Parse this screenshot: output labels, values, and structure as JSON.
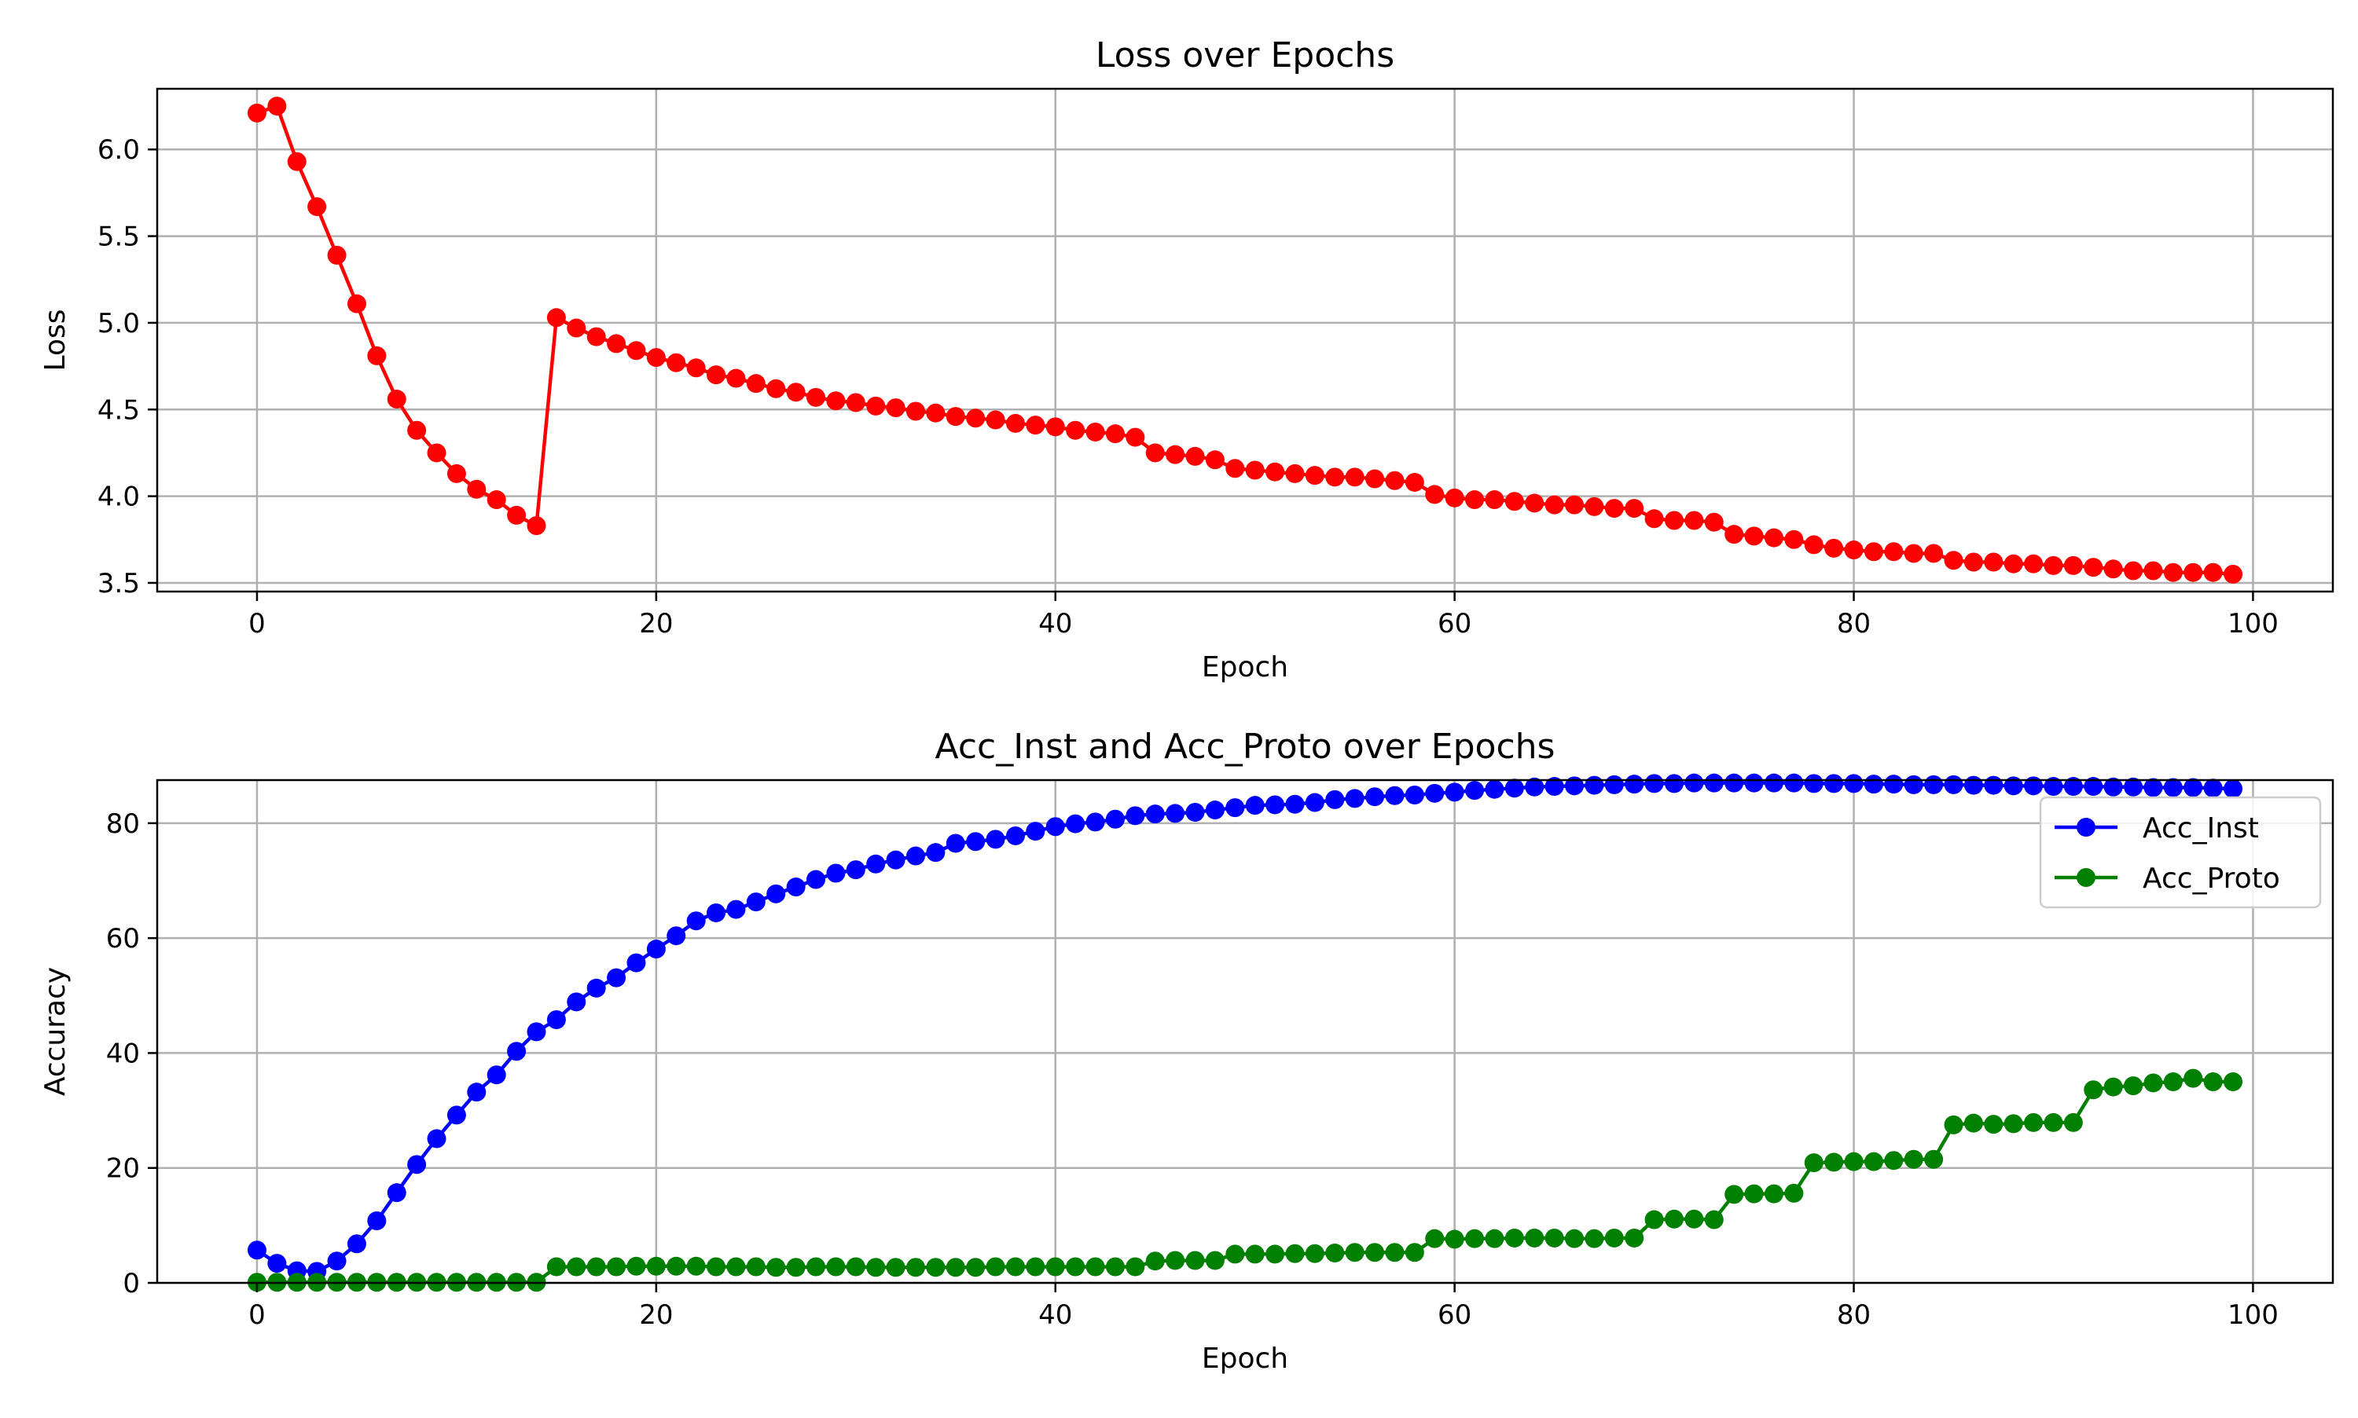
{
  "chart_data": [
    {
      "type": "line",
      "title": "Loss over Epochs",
      "xlabel": "Epoch",
      "ylabel": "Loss",
      "xlim": [
        -5,
        104
      ],
      "ylim": [
        3.45,
        6.35
      ],
      "xticks": [
        0,
        20,
        40,
        60,
        80,
        100
      ],
      "yticks": [
        3.5,
        4.0,
        4.5,
        5.0,
        5.5,
        6.0
      ],
      "ytick_labels": [
        "3.5",
        "4.0",
        "4.5",
        "5.0",
        "5.5",
        "6.0"
      ],
      "grid": true,
      "legend": null,
      "series": [
        {
          "name": "",
          "color": "#ff0000",
          "marker": "circle",
          "values": [
            6.21,
            6.25,
            5.93,
            5.67,
            5.39,
            5.11,
            4.81,
            4.56,
            4.38,
            4.25,
            4.13,
            4.04,
            3.98,
            3.89,
            3.83,
            5.03,
            4.97,
            4.92,
            4.88,
            4.84,
            4.8,
            4.77,
            4.74,
            4.7,
            4.68,
            4.65,
            4.62,
            4.6,
            4.57,
            4.55,
            4.54,
            4.52,
            4.51,
            4.49,
            4.48,
            4.46,
            4.45,
            4.44,
            4.42,
            4.41,
            4.4,
            4.38,
            4.37,
            4.36,
            4.34,
            4.25,
            4.24,
            4.23,
            4.21,
            4.16,
            4.15,
            4.14,
            4.13,
            4.12,
            4.11,
            4.11,
            4.1,
            4.09,
            4.08,
            4.01,
            3.99,
            3.98,
            3.98,
            3.97,
            3.96,
            3.95,
            3.95,
            3.94,
            3.93,
            3.93,
            3.87,
            3.86,
            3.86,
            3.85,
            3.78,
            3.77,
            3.76,
            3.75,
            3.72,
            3.7,
            3.69,
            3.68,
            3.68,
            3.67,
            3.67,
            3.63,
            3.62,
            3.62,
            3.61,
            3.61,
            3.6,
            3.6,
            3.59,
            3.58,
            3.57,
            3.57,
            3.56,
            3.56,
            3.56,
            3.55
          ]
        }
      ]
    },
    {
      "type": "line",
      "title": "Acc_Inst and Acc_Proto over Epochs",
      "xlabel": "Epoch",
      "ylabel": "Accuracy",
      "xlim": [
        -5,
        104
      ],
      "ylim": [
        0,
        87.5
      ],
      "xticks": [
        0,
        20,
        40,
        60,
        80,
        100
      ],
      "yticks": [
        0,
        20,
        40,
        60,
        80
      ],
      "ytick_labels": [
        "0",
        "20",
        "40",
        "60",
        "80"
      ],
      "grid": true,
      "legend": "upper-right",
      "series": [
        {
          "name": "Acc_Inst",
          "color": "#0000ff",
          "marker": "circle",
          "values": [
            5.7,
            3.4,
            2.1,
            2.0,
            3.8,
            6.8,
            10.8,
            15.7,
            20.6,
            25.1,
            29.2,
            33.2,
            36.2,
            40.3,
            43.7,
            45.8,
            48.9,
            51.3,
            53.1,
            55.7,
            58.1,
            60.4,
            63.0,
            64.4,
            65.0,
            66.3,
            67.7,
            68.9,
            70.2,
            71.3,
            71.9,
            72.9,
            73.6,
            74.3,
            74.9,
            76.5,
            76.8,
            77.2,
            77.8,
            78.6,
            79.4,
            79.9,
            80.2,
            80.7,
            81.3,
            81.6,
            81.7,
            81.9,
            82.3,
            82.7,
            83.1,
            83.2,
            83.3,
            83.6,
            84.1,
            84.3,
            84.6,
            84.8,
            84.9,
            85.2,
            85.4,
            85.7,
            85.9,
            86.1,
            86.3,
            86.4,
            86.5,
            86.6,
            86.7,
            86.8,
            86.9,
            86.9,
            87.0,
            87.0,
            87.0,
            87.0,
            87.0,
            87.0,
            86.9,
            86.9,
            86.9,
            86.8,
            86.8,
            86.7,
            86.7,
            86.7,
            86.6,
            86.6,
            86.5,
            86.5,
            86.4,
            86.4,
            86.4,
            86.3,
            86.3,
            86.2,
            86.2,
            86.2,
            86.1,
            86.0
          ]
        },
        {
          "name": "Acc_Proto",
          "color": "#008000",
          "marker": "circle",
          "values": [
            0.1,
            0.1,
            0.1,
            0.1,
            0.1,
            0.1,
            0.1,
            0.1,
            0.1,
            0.1,
            0.1,
            0.1,
            0.1,
            0.1,
            0.1,
            2.8,
            2.8,
            2.8,
            2.8,
            2.9,
            2.9,
            2.9,
            2.9,
            2.8,
            2.8,
            2.8,
            2.7,
            2.7,
            2.8,
            2.8,
            2.8,
            2.7,
            2.7,
            2.7,
            2.7,
            2.7,
            2.7,
            2.8,
            2.8,
            2.8,
            2.8,
            2.8,
            2.8,
            2.8,
            2.8,
            3.8,
            3.9,
            3.9,
            3.9,
            5.0,
            5.0,
            5.0,
            5.1,
            5.1,
            5.2,
            5.3,
            5.3,
            5.3,
            5.3,
            7.7,
            7.6,
            7.7,
            7.7,
            7.8,
            7.8,
            7.8,
            7.7,
            7.7,
            7.8,
            7.8,
            11.0,
            11.1,
            11.1,
            11.0,
            15.4,
            15.5,
            15.5,
            15.6,
            20.9,
            21.0,
            21.1,
            21.1,
            21.3,
            21.5,
            21.5,
            27.5,
            27.8,
            27.6,
            27.7,
            27.9,
            27.9,
            27.9,
            33.6,
            34.1,
            34.3,
            34.8,
            35.0,
            35.6,
            35.0,
            35.0
          ]
        }
      ]
    }
  ]
}
